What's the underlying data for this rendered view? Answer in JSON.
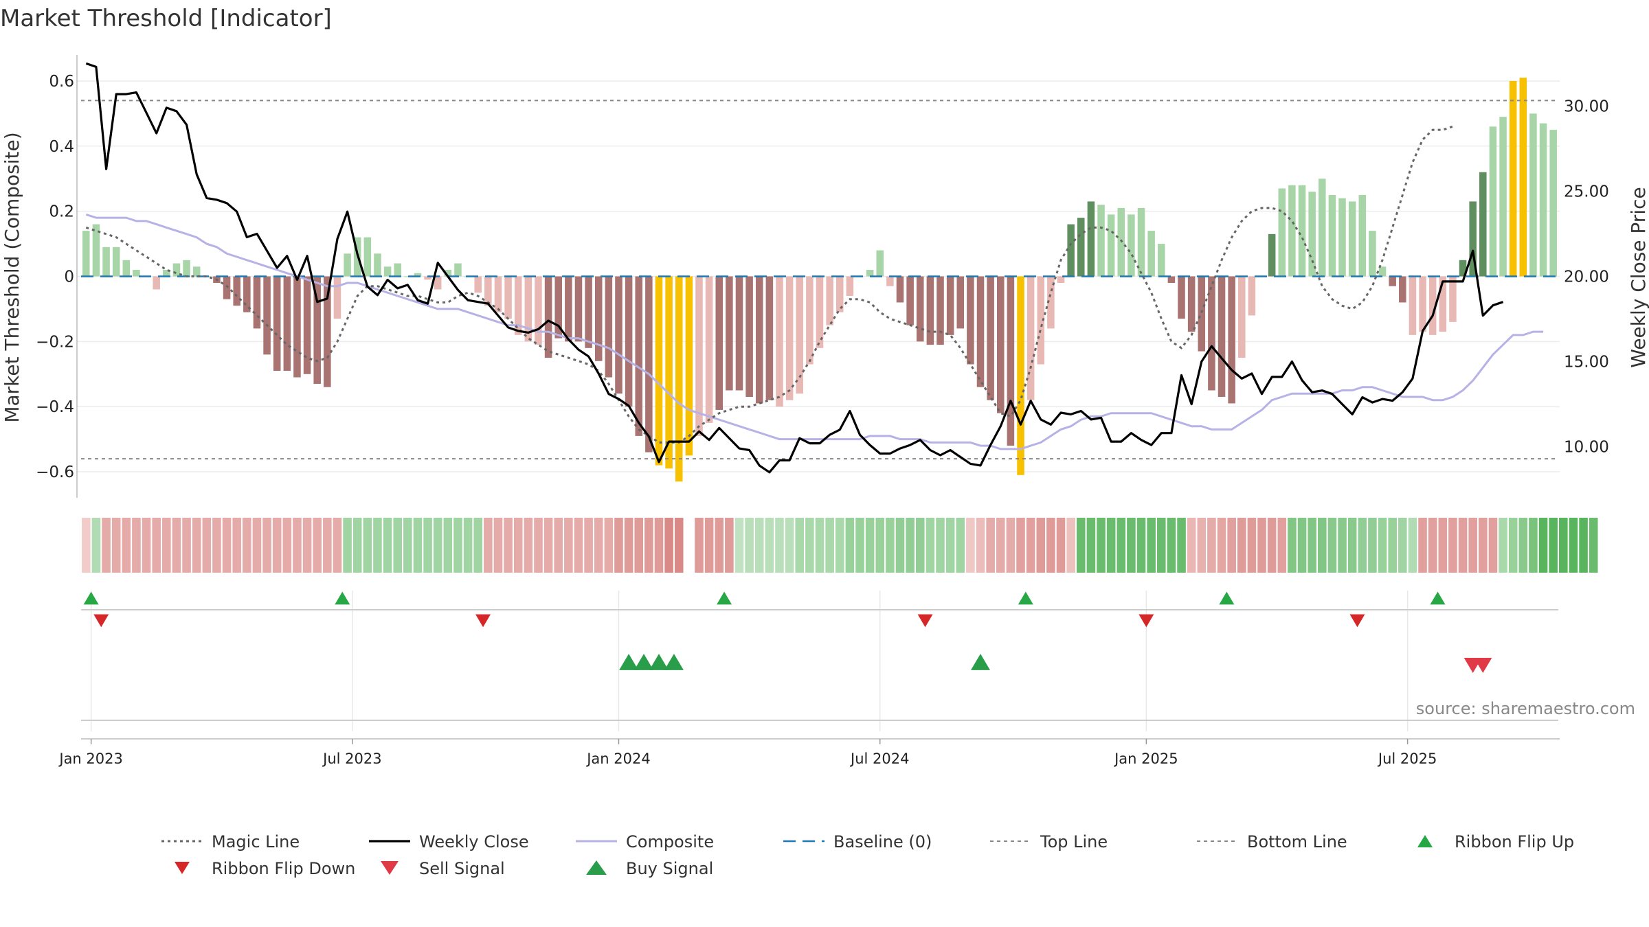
{
  "chart_data": {
    "type": "bar",
    "title": "Market Threshold [Indicator]",
    "ylabel_left": "Market Threshold (Composite)",
    "ylabel_right": "Weekly Close Price",
    "source": "source: sharemaestro.com",
    "left_ylim": [
      -0.68,
      0.68
    ],
    "right_ylim": [
      7.0,
      33.0
    ],
    "left_ticks": [
      0.6,
      0.4,
      0.2,
      0,
      -0.2,
      -0.4,
      -0.6
    ],
    "left_tick_labels": [
      "0.6",
      "0.4",
      "0.2",
      "0",
      "−0.2",
      "−0.4",
      "−0.6"
    ],
    "right_ticks": [
      30,
      25,
      20,
      15,
      10
    ],
    "right_tick_labels": [
      "30.00",
      "25.00",
      "20.00",
      "15.00",
      "10.00"
    ],
    "x_ticks": [
      {
        "week": 0.5,
        "label": "Jan 2023"
      },
      {
        "week": 26.5,
        "label": "Jul 2023"
      },
      {
        "week": 53,
        "label": "Jan 2024"
      },
      {
        "week": 79,
        "label": "Jul 2024"
      },
      {
        "week": 105.5,
        "label": "Jan 2025"
      },
      {
        "week": 131.5,
        "label": "Jul 2025"
      }
    ],
    "top_line": 0.54,
    "bottom_line": -0.56,
    "baseline": 0,
    "composite_bars": [
      0.14,
      0.16,
      0.09,
      0.09,
      0.05,
      0.02,
      0.0,
      -0.04,
      0.02,
      0.04,
      0.05,
      0.03,
      0.0,
      -0.02,
      -0.07,
      -0.09,
      -0.11,
      -0.16,
      -0.24,
      -0.29,
      -0.29,
      -0.31,
      -0.3,
      -0.33,
      -0.34,
      -0.13,
      0.07,
      0.12,
      0.12,
      0.07,
      0.03,
      0.04,
      0.0,
      0.01,
      -0.01,
      -0.04,
      0.02,
      0.04,
      0.0,
      -0.05,
      -0.09,
      -0.11,
      -0.13,
      -0.18,
      -0.2,
      -0.21,
      -0.25,
      -0.19,
      -0.2,
      -0.2,
      -0.22,
      -0.26,
      -0.31,
      -0.36,
      -0.4,
      -0.49,
      -0.54,
      -0.58,
      -0.59,
      -0.63,
      -0.55,
      -0.49,
      -0.45,
      -0.41,
      -0.35,
      -0.35,
      -0.37,
      -0.39,
      -0.38,
      -0.4,
      -0.38,
      -0.36,
      -0.27,
      -0.22,
      -0.15,
      -0.11,
      -0.06,
      0.0,
      0.02,
      0.08,
      -0.03,
      -0.08,
      -0.15,
      -0.2,
      -0.21,
      -0.21,
      -0.18,
      -0.16,
      -0.27,
      -0.34,
      -0.38,
      -0.42,
      -0.52,
      -0.61,
      -0.38,
      -0.27,
      -0.16,
      -0.02,
      0.16,
      0.18,
      0.23,
      0.22,
      0.19,
      0.21,
      0.19,
      0.21,
      0.14,
      0.1,
      -0.02,
      -0.13,
      -0.17,
      -0.23,
      -0.35,
      -0.37,
      -0.39,
      -0.25,
      -0.12,
      0.0,
      0.13,
      0.27,
      0.28,
      0.28,
      0.26,
      0.3,
      0.25,
      0.24,
      0.23,
      0.25,
      0.14,
      0.03,
      -0.03,
      -0.08,
      -0.18,
      -0.17,
      -0.18,
      -0.17,
      -0.14,
      0.05,
      0.23,
      0.32,
      0.46,
      0.49,
      0.6,
      0.61,
      0.5,
      0.47,
      0.45
    ],
    "composite_line": [
      0.19,
      0.18,
      0.18,
      0.18,
      0.18,
      0.17,
      0.17,
      0.16,
      0.15,
      0.14,
      0.13,
      0.12,
      0.1,
      0.09,
      0.07,
      0.06,
      0.05,
      0.04,
      0.03,
      0.02,
      0.01,
      0.0,
      -0.01,
      -0.02,
      -0.03,
      -0.03,
      -0.02,
      -0.02,
      -0.03,
      -0.04,
      -0.05,
      -0.06,
      -0.07,
      -0.08,
      -0.09,
      -0.1,
      -0.1,
      -0.1,
      -0.11,
      -0.12,
      -0.13,
      -0.14,
      -0.15,
      -0.15,
      -0.16,
      -0.17,
      -0.17,
      -0.18,
      -0.19,
      -0.19,
      -0.2,
      -0.21,
      -0.22,
      -0.24,
      -0.26,
      -0.28,
      -0.3,
      -0.33,
      -0.36,
      -0.39,
      -0.41,
      -0.42,
      -0.43,
      -0.44,
      -0.45,
      -0.46,
      -0.47,
      -0.48,
      -0.49,
      -0.5,
      -0.5,
      -0.5,
      -0.5,
      -0.5,
      -0.5,
      -0.5,
      -0.5,
      -0.5,
      -0.49,
      -0.49,
      -0.49,
      -0.5,
      -0.5,
      -0.5,
      -0.51,
      -0.51,
      -0.51,
      -0.51,
      -0.51,
      -0.52,
      -0.52,
      -0.53,
      -0.53,
      -0.53,
      -0.52,
      -0.51,
      -0.49,
      -0.47,
      -0.46,
      -0.44,
      -0.43,
      -0.43,
      -0.42,
      -0.42,
      -0.42,
      -0.42,
      -0.42,
      -0.43,
      -0.44,
      -0.45,
      -0.46,
      -0.46,
      -0.47,
      -0.47,
      -0.47,
      -0.45,
      -0.43,
      -0.41,
      -0.38,
      -0.37,
      -0.36,
      -0.36,
      -0.36,
      -0.36,
      -0.36,
      -0.35,
      -0.35,
      -0.34,
      -0.34,
      -0.35,
      -0.36,
      -0.37,
      -0.37,
      -0.37,
      -0.38,
      -0.38,
      -0.37,
      -0.35,
      -0.32,
      -0.28,
      -0.24,
      -0.21,
      -0.18,
      -0.18,
      -0.17,
      -0.17
    ],
    "magic_line": [
      0.15,
      0.14,
      0.13,
      0.12,
      0.1,
      0.08,
      0.06,
      0.04,
      0.02,
      0.01,
      0.0,
      0.0,
      0.0,
      -0.01,
      -0.03,
      -0.06,
      -0.09,
      -0.12,
      -0.15,
      -0.18,
      -0.21,
      -0.23,
      -0.25,
      -0.26,
      -0.25,
      -0.2,
      -0.13,
      -0.06,
      -0.03,
      -0.03,
      -0.04,
      -0.05,
      -0.06,
      -0.06,
      -0.07,
      -0.08,
      -0.08,
      -0.06,
      -0.05,
      -0.06,
      -0.08,
      -0.1,
      -0.13,
      -0.16,
      -0.19,
      -0.21,
      -0.23,
      -0.24,
      -0.25,
      -0.26,
      -0.27,
      -0.29,
      -0.33,
      -0.38,
      -0.43,
      -0.47,
      -0.49,
      -0.51,
      -0.51,
      -0.51,
      -0.49,
      -0.46,
      -0.44,
      -0.42,
      -0.41,
      -0.4,
      -0.4,
      -0.39,
      -0.38,
      -0.37,
      -0.35,
      -0.31,
      -0.26,
      -0.2,
      -0.15,
      -0.1,
      -0.07,
      -0.07,
      -0.08,
      -0.11,
      -0.13,
      -0.14,
      -0.15,
      -0.16,
      -0.17,
      -0.17,
      -0.18,
      -0.22,
      -0.27,
      -0.32,
      -0.37,
      -0.42,
      -0.43,
      -0.38,
      -0.28,
      -0.16,
      -0.05,
      0.05,
      0.1,
      0.13,
      0.15,
      0.15,
      0.14,
      0.11,
      0.07,
      0.01,
      -0.05,
      -0.13,
      -0.2,
      -0.22,
      -0.18,
      -0.11,
      -0.03,
      0.05,
      0.12,
      0.17,
      0.2,
      0.21,
      0.21,
      0.2,
      0.17,
      0.12,
      0.05,
      -0.03,
      -0.07,
      -0.09,
      -0.1,
      -0.08,
      -0.03,
      0.05,
      0.15,
      0.25,
      0.35,
      0.42,
      0.45,
      0.45,
      0.46
    ],
    "weekly_close": [
      32.5,
      32.3,
      26.3,
      30.7,
      30.7,
      30.8,
      29.6,
      28.4,
      29.9,
      29.7,
      28.9,
      26.0,
      24.6,
      24.5,
      24.3,
      23.8,
      22.3,
      22.5,
      21.5,
      20.5,
      21.2,
      19.8,
      21.2,
      18.5,
      18.7,
      22.2,
      23.8,
      21.3,
      19.4,
      18.9,
      19.8,
      19.3,
      19.5,
      18.6,
      18.4,
      20.8,
      20.0,
      19.2,
      18.6,
      18.5,
      18.4,
      17.7,
      17.0,
      16.8,
      16.7,
      16.9,
      17.4,
      17.1,
      16.3,
      15.7,
      15.3,
      14.3,
      13.1,
      12.8,
      12.4,
      11.4,
      10.6,
      9.1,
      10.3,
      10.3,
      10.3,
      10.9,
      10.4,
      11.1,
      10.5,
      9.9,
      9.8,
      8.9,
      8.5,
      9.2,
      9.2,
      10.5,
      10.2,
      10.2,
      10.7,
      11.0,
      12.1,
      10.7,
      10.1,
      9.6,
      9.6,
      9.9,
      10.1,
      10.4,
      9.8,
      9.5,
      9.8,
      9.4,
      9.0,
      8.9,
      10.1,
      11.2,
      12.7,
      11.3,
      12.7,
      11.6,
      11.3,
      12.0,
      11.9,
      12.1,
      11.6,
      11.7,
      10.3,
      10.3,
      10.8,
      10.4,
      10.1,
      10.8,
      10.8,
      14.2,
      12.5,
      15.0,
      15.9,
      15.2,
      14.5,
      14.0,
      14.3,
      13.1,
      14.1,
      14.1,
      15.0,
      13.9,
      13.2,
      13.3,
      13.1,
      12.5,
      11.9,
      12.9,
      12.6,
      12.8,
      12.7,
      13.2,
      14.0,
      16.8,
      17.7,
      19.7,
      19.7,
      19.7,
      21.5,
      17.7,
      18.3,
      18.5
    ],
    "ribbon_strength": [
      -0.1,
      0.3,
      -0.4,
      -0.4,
      -0.4,
      -0.4,
      -0.4,
      -0.4,
      -0.4,
      -0.4,
      -0.4,
      -0.4,
      -0.4,
      -0.4,
      -0.4,
      -0.4,
      -0.4,
      -0.4,
      -0.4,
      -0.4,
      -0.4,
      -0.4,
      -0.4,
      -0.4,
      -0.4,
      -0.4,
      0.4,
      0.4,
      0.4,
      0.4,
      0.4,
      0.4,
      0.4,
      0.4,
      0.4,
      0.4,
      0.4,
      0.4,
      0.4,
      0.4,
      -0.4,
      -0.4,
      -0.4,
      -0.4,
      -0.4,
      -0.4,
      -0.4,
      -0.4,
      -0.4,
      -0.4,
      -0.4,
      -0.4,
      -0.4,
      -0.55,
      -0.55,
      -0.55,
      -0.55,
      -0.55,
      -0.7,
      -0.7,
      null,
      -0.55,
      -0.55,
      -0.55,
      -0.55,
      0.2,
      0.25,
      0.25,
      0.25,
      0.25,
      0.25,
      0.35,
      0.35,
      0.35,
      0.35,
      0.35,
      0.45,
      0.45,
      0.45,
      0.45,
      0.45,
      0.5,
      0.5,
      0.5,
      0.4,
      0.4,
      0.4,
      0.4,
      -0.15,
      -0.25,
      -0.4,
      -0.4,
      -0.4,
      -0.5,
      -0.5,
      -0.55,
      -0.55,
      -0.55,
      -0.2,
      0.75,
      0.75,
      0.75,
      0.75,
      0.75,
      0.75,
      0.75,
      0.75,
      0.75,
      0.75,
      0.75,
      -0.3,
      -0.35,
      -0.4,
      -0.45,
      -0.5,
      -0.55,
      -0.55,
      -0.55,
      -0.55,
      -0.5,
      0.6,
      0.6,
      0.6,
      0.6,
      0.55,
      0.55,
      0.55,
      0.5,
      0.5,
      0.45,
      0.45,
      0.4,
      0.3,
      -0.5,
      -0.5,
      -0.5,
      -0.5,
      -0.5,
      -0.5,
      -0.5,
      -0.5,
      0.35,
      0.45,
      0.55,
      0.65,
      0.85,
      0.85,
      0.85,
      0.85,
      0.85,
      0.75
    ],
    "ribbon_flip_up": [
      0.5,
      25.5,
      63.5,
      93.5,
      113.5,
      134.5
    ],
    "ribbon_flip_down": [
      1.5,
      39.5,
      83.5,
      105.5,
      126.5
    ],
    "buy_signal": [
      54,
      55.5,
      57,
      58.5,
      89
    ],
    "sell_signal": [
      138,
      139
    ],
    "colors": {
      "bar_strong_pos": "#5f8f5f",
      "bar_light_pos": "#a8d5a8",
      "bar_strong_neg": "#a87370",
      "bar_light_neg": "#e8b9b4",
      "bar_extreme": "#f7c102",
      "weekly_close": "#000000",
      "composite": "#b7b2e6",
      "magic_line": "#666666",
      "baseline": "#1f77b4",
      "threshold_lines": "#888888",
      "buy": "#2a9d4a",
      "sell": "#e03a47",
      "flip_up": "#28a745",
      "flip_down": "#d62728"
    },
    "legend": [
      {
        "key": "magic",
        "label": "Magic Line"
      },
      {
        "key": "close",
        "label": "Weekly Close"
      },
      {
        "key": "composite",
        "label": "Composite"
      },
      {
        "key": "baseline",
        "label": "Baseline (0)"
      },
      {
        "key": "top",
        "label": "Top Line"
      },
      {
        "key": "bottom",
        "label": "Bottom Line"
      },
      {
        "key": "flipup",
        "label": "Ribbon Flip Up"
      },
      {
        "key": "flipdown",
        "label": "Ribbon Flip Down"
      },
      {
        "key": "sell",
        "label": "Sell Signal"
      },
      {
        "key": "buy",
        "label": "Buy Signal"
      }
    ]
  }
}
